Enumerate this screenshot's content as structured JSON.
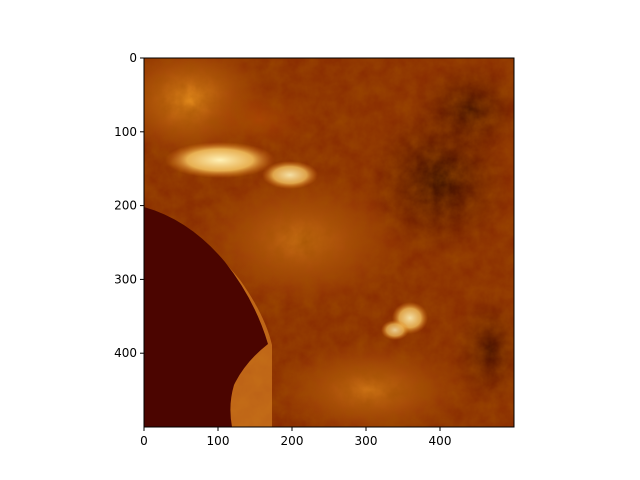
{
  "chart_data": {
    "type": "heatmap",
    "title": "",
    "xlabel": "",
    "ylabel": "",
    "xlim": [
      0,
      500
    ],
    "ylim": [
      500,
      0
    ],
    "y_axis_inverted": true,
    "grid": false,
    "legend": "none",
    "colormap": "afmhot",
    "colorbar": false,
    "x_ticks": [
      {
        "value": 0,
        "label": "0"
      },
      {
        "value": 100,
        "label": "100"
      },
      {
        "value": 200,
        "label": "200"
      },
      {
        "value": 300,
        "label": "300"
      },
      {
        "value": 400,
        "label": "400"
      }
    ],
    "y_ticks": [
      {
        "value": 0,
        "label": "0"
      },
      {
        "value": 100,
        "label": "100"
      },
      {
        "value": 200,
        "label": "200"
      },
      {
        "value": 300,
        "label": "300"
      },
      {
        "value": 400,
        "label": "400"
      }
    ],
    "image_description_regions": {
      "water_body": {
        "approx_extent_x": [
          0,
          170
        ],
        "approx_extent_y": [
          205,
          500
        ],
        "intensity": "low"
      },
      "bright_patch_1": {
        "approx_center": [
          100,
          155
        ],
        "intensity": "high"
      },
      "bright_patch_2": {
        "approx_center": [
          375,
          345
        ],
        "intensity": "high"
      },
      "dark_terrain": {
        "approx_center": [
          420,
          180
        ],
        "intensity": "low"
      }
    }
  }
}
